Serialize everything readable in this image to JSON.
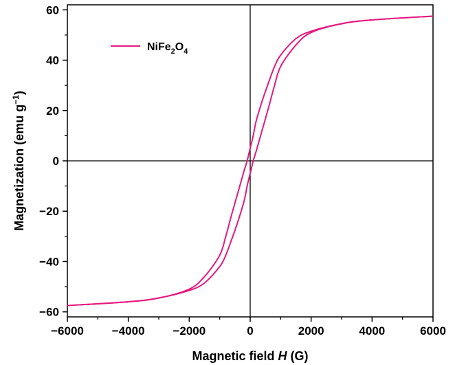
{
  "chart_data": {
    "type": "line",
    "xlabel": {
      "prefix": "Magnetic field ",
      "symbol": "H",
      "suffix": " (G)"
    },
    "ylabel": {
      "base": "Magnetization (emu g",
      "sup": "−1",
      "close": ")"
    },
    "xlim": [
      -6000,
      6000
    ],
    "ylim": [
      -62,
      62
    ],
    "xticks": [
      -6000,
      -4000,
      -2000,
      0,
      2000,
      4000,
      6000
    ],
    "xtick_labels": [
      "−6000",
      "−4000",
      "−2000",
      "0",
      "2000",
      "4000",
      "6000"
    ],
    "yticks": [
      -60,
      -40,
      -20,
      0,
      20,
      40,
      60
    ],
    "ytick_labels": [
      "−60",
      "−40",
      "−20",
      "0",
      "20",
      "40",
      "60"
    ],
    "legend": {
      "position": "top-left",
      "parts": [
        "NiFe",
        "2",
        "O",
        "4"
      ]
    },
    "series": [
      {
        "name": "NiFe2O4",
        "color": "#e6197e",
        "branch_descending": {
          "x": [
            6000,
            4000,
            3000,
            2000,
            1500,
            1000,
            800,
            600,
            400,
            200,
            100,
            0,
            -100,
            -200,
            -400,
            -600,
            -800,
            -1000,
            -1500,
            -2000,
            -3000,
            -4000,
            -6000
          ],
          "y": [
            57.5,
            56.0,
            54.5,
            51.5,
            48.5,
            42.0,
            37.5,
            31.0,
            24.0,
            16.0,
            10.0,
            5.0,
            0.0,
            -4.0,
            -12.5,
            -21.0,
            -30.0,
            -37.5,
            -46.0,
            -51.0,
            -54.5,
            -56.0,
            -57.5
          ]
        },
        "branch_ascending": {
          "x": [
            -6000,
            -4000,
            -3000,
            -2000,
            -1500,
            -1000,
            -800,
            -600,
            -400,
            -200,
            -100,
            0,
            100,
            200,
            400,
            600,
            800,
            1000,
            1500,
            2000,
            3000,
            4000,
            6000
          ],
          "y": [
            -57.5,
            -56.0,
            -54.5,
            -51.5,
            -48.5,
            -42.0,
            -37.5,
            -31.0,
            -24.0,
            -16.0,
            -10.0,
            -5.0,
            0.0,
            4.0,
            12.5,
            21.0,
            30.0,
            37.5,
            46.0,
            51.0,
            54.5,
            56.0,
            57.5
          ]
        }
      }
    ],
    "grid": false
  }
}
